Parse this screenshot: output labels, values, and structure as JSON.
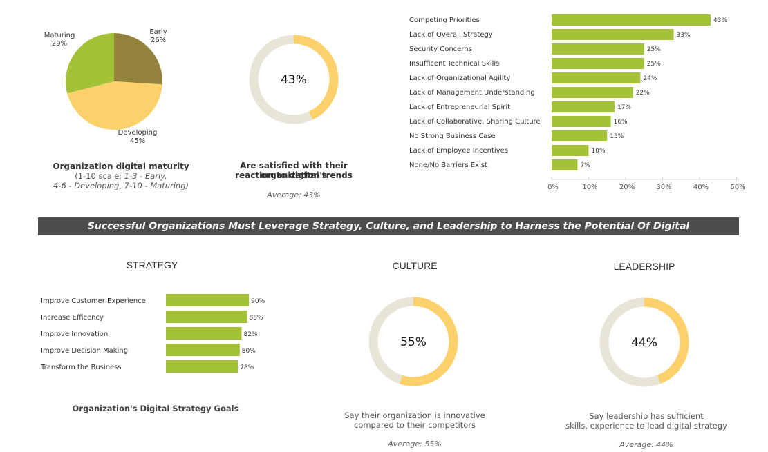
{
  "colors": {
    "green": "#a4c237",
    "yellow": "#fcd16b",
    "olive": "#93823b",
    "ring_bg": "#e8e5d6"
  },
  "chart_data": [
    {
      "type": "pie",
      "name": "maturity",
      "slices": [
        {
          "label": "Early",
          "pct": "26%",
          "value": 26,
          "color": "#93823b"
        },
        {
          "label": "Developing",
          "pct": "45%",
          "value": 45,
          "color": "#fcd16b"
        },
        {
          "label": "Maturing",
          "pct": "29%",
          "value": 29,
          "color": "#a4c237"
        }
      ],
      "caption": "Organization digital maturity",
      "subcaption_1": "(1-10 scale; ",
      "subcaption_2": "1-3 - Early,",
      "subcaption_3": "4-6 - Developing, 7-10 - Maturing)"
    },
    {
      "type": "donut",
      "name": "satisfied",
      "value": 43,
      "label": "43%",
      "caption_1": "Are satisfied with their organization's",
      "caption_2": "reaction to digital trends",
      "average": "Average: 43%"
    },
    {
      "type": "bar",
      "name": "barriers",
      "orientation": "horizontal",
      "categories": [
        "Competing Priorities",
        "Lack of Overall Strategy",
        "Security Concerns",
        "Insufficent Technical Skills",
        "Lack of Organizational Agility",
        "Lack of Management Understanding",
        "Lack of Entrepreneurial Spirit",
        "Lack of Collaborative, Sharing Culture",
        "No Strong Business Case",
        "Lack of Employee Incentives",
        "None/No Barriers Exist"
      ],
      "values": [
        43,
        33,
        25,
        25,
        24,
        22,
        17,
        16,
        15,
        10,
        7
      ],
      "xlim": [
        0,
        50
      ],
      "ticks": [
        0,
        10,
        20,
        30,
        40,
        50
      ],
      "tick_labels": [
        "0%",
        "10%",
        "20%",
        "30%",
        "40%",
        "50%"
      ]
    },
    {
      "type": "bar",
      "name": "strategy",
      "orientation": "horizontal",
      "categories": [
        "Improve Customer Experience",
        "Increase Efficency",
        "Improve Innovation",
        "Improve Decision Making",
        "Transform the Business"
      ],
      "values": [
        90,
        88,
        82,
        80,
        78
      ],
      "xlim": [
        0,
        100
      ],
      "caption": "Organization's Digital Strategy Goals"
    },
    {
      "type": "donut",
      "name": "culture",
      "value": 55,
      "label": "55%",
      "caption_1": "Say their organization is innovative",
      "caption_2": "compared to their competitors",
      "average": "Average: 55%"
    },
    {
      "type": "donut",
      "name": "leadership",
      "value": 44,
      "label": "44%",
      "caption_1": "Say leadership has sufficient",
      "caption_2": "skills, experience to lead digital strategy",
      "average": "Average: 44%"
    }
  ],
  "banner": "Successful Organizations Must Leverage Strategy, Culture, and Leadership to Harness the Potential Of Digital",
  "sections": {
    "strategy": "STRATEGY",
    "culture": "CULTURE",
    "leadership": "LEADERSHIP"
  }
}
